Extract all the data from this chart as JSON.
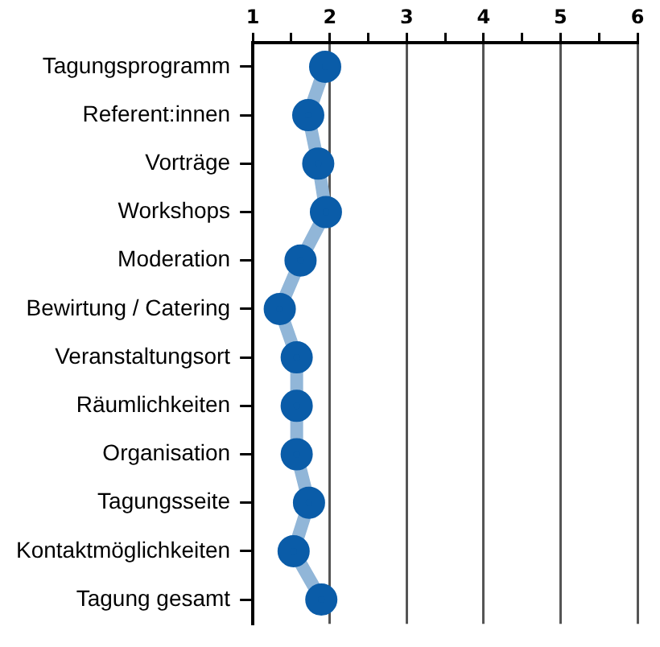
{
  "chart_data": {
    "type": "line",
    "orientation": "horizontal",
    "categories": [
      "Tagungsprogramm",
      "Referent:innen",
      "Vorträge",
      "Workshops",
      "Moderation",
      "Bewirtung / Catering",
      "Veranstaltungsort",
      "Räumlichkeiten",
      "Organisation",
      "Tagungsseite",
      "Kontaktmöglichkeiten",
      "Tagung gesamt"
    ],
    "series": [
      {
        "color": "#0a5ca8",
        "values": [
          1.94,
          1.72,
          1.85,
          1.95,
          1.62,
          1.35,
          1.57,
          1.57,
          1.57,
          1.73,
          1.53,
          1.89
        ]
      }
    ],
    "xlim": [
      1,
      6
    ],
    "xticks": [
      1,
      {
        "value": 1.5,
        "label": null
      },
      2,
      {
        "value": 2.5,
        "label": null
      },
      3,
      {
        "value": 3.5,
        "label": null
      },
      4,
      {
        "value": 4.5,
        "label": null
      },
      5,
      {
        "value": 5.5,
        "label": null
      },
      6
    ],
    "grid": "x",
    "legend": false,
    "marker": "circle",
    "line_style": "solid"
  }
}
